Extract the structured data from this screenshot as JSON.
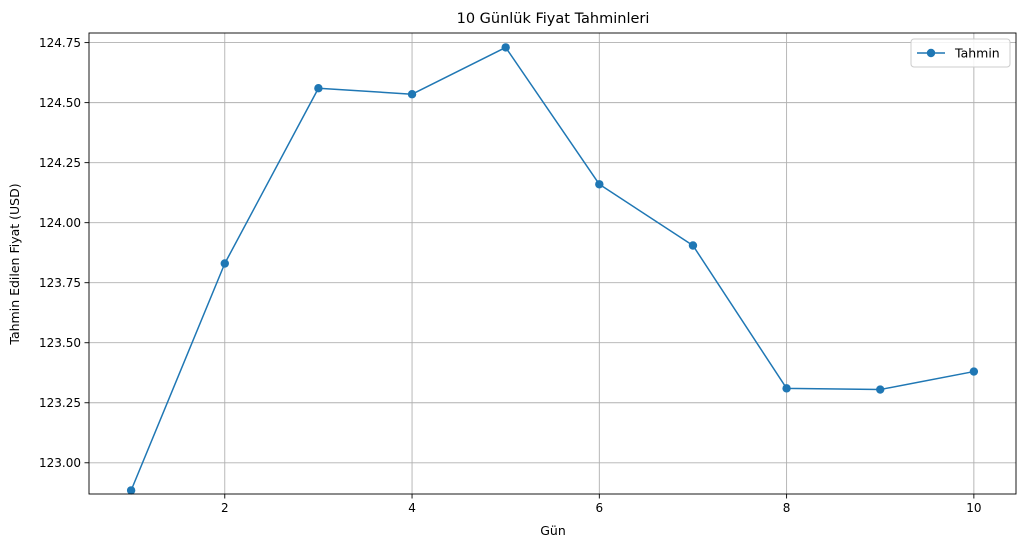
{
  "chart_data": {
    "type": "line",
    "title": "10 Günlük Fiyat Tahminleri",
    "xlabel": "Gün",
    "ylabel": "Tahmin Edilen Fiyat (USD)",
    "xlim": [
      0.55,
      10.45
    ],
    "ylim": [
      122.87,
      124.79
    ],
    "xticks": [
      2,
      4,
      6,
      8,
      10
    ],
    "xtick_labels": [
      "2",
      "4",
      "6",
      "8",
      "10"
    ],
    "yticks": [
      123.0,
      123.25,
      123.5,
      123.75,
      124.0,
      124.25,
      124.5,
      124.75
    ],
    "ytick_labels": [
      "123.00",
      "123.25",
      "123.50",
      "123.75",
      "124.00",
      "124.25",
      "124.50",
      "124.75"
    ],
    "grid": true,
    "legend_position": "top-right",
    "series": [
      {
        "name": "Tahmin",
        "color": "#1f77b4",
        "marker": "circle",
        "x": [
          1,
          2,
          3,
          4,
          5,
          6,
          7,
          8,
          9,
          10
        ],
        "y": [
          122.885,
          123.83,
          124.56,
          124.535,
          124.73,
          124.16,
          123.905,
          123.31,
          123.305,
          123.38
        ]
      }
    ]
  }
}
